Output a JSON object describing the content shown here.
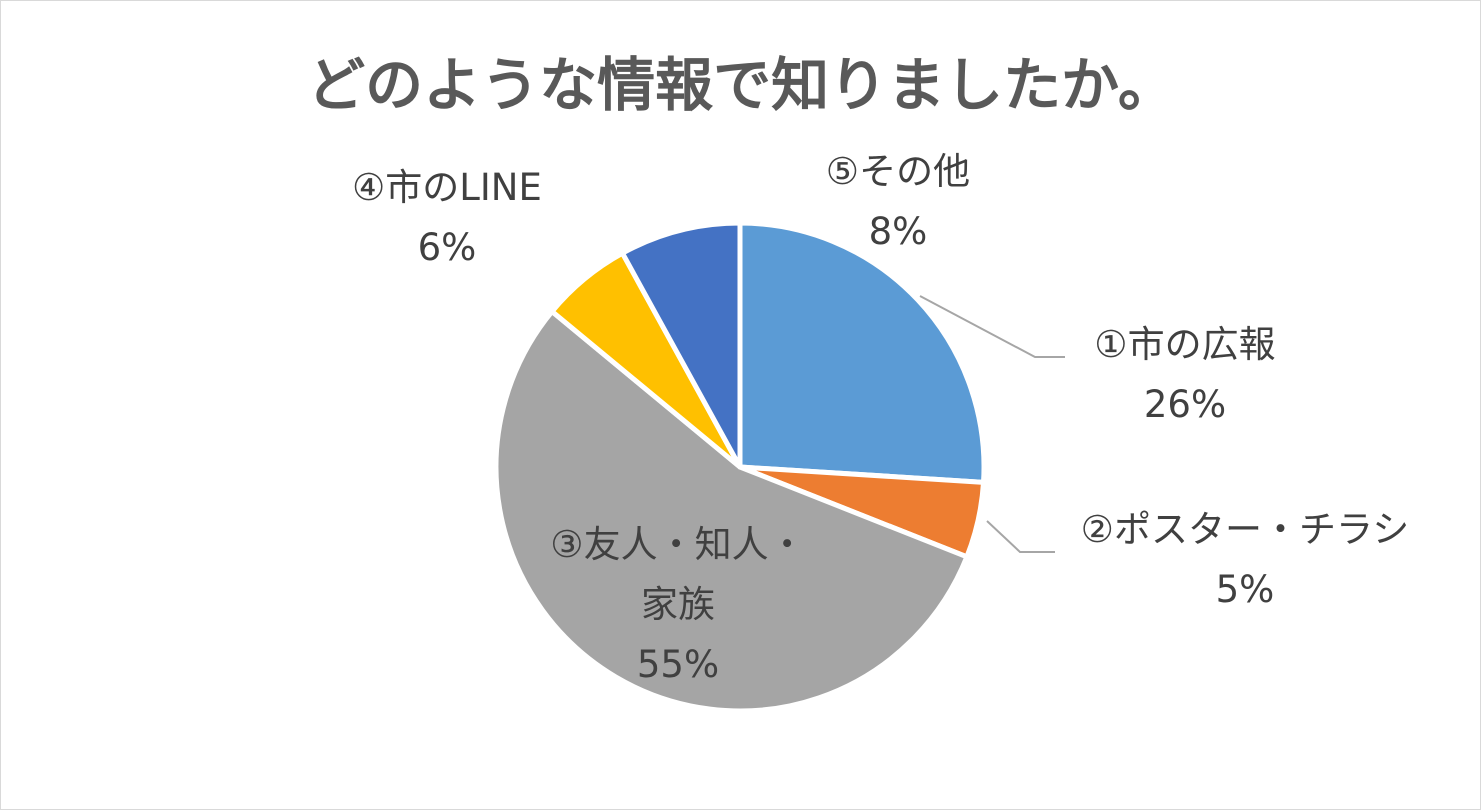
{
  "chart_data": {
    "type": "pie",
    "title": "どのような情報で知りましたか。",
    "slices": [
      {
        "label": "①市の広報",
        "label_lines": [
          "①市の広報"
        ],
        "value": 26,
        "percent_label": "26%",
        "color": "#5b9bd5"
      },
      {
        "label": "②ポスター・チラシ",
        "label_lines": [
          "②ポスター・チラシ"
        ],
        "value": 5,
        "percent_label": "5%",
        "color": "#ed7d31"
      },
      {
        "label": "③友人・知人・家族",
        "label_lines": [
          "③友人・知人・",
          "家族"
        ],
        "value": 55,
        "percent_label": "55%",
        "color": "#a5a5a5"
      },
      {
        "label": "④市のLINE",
        "label_lines": [
          "④市のLINE"
        ],
        "value": 6,
        "percent_label": "6%",
        "color": "#ffc000"
      },
      {
        "label": "⑤その他",
        "label_lines": [
          "⑤その他"
        ],
        "value": 8,
        "percent_label": "8%",
        "color": "#4472c4"
      }
    ],
    "start_angle": "12 o'clock",
    "direction": "clockwise",
    "legend": "none",
    "label_color": "#404040",
    "leader_line_color": "#a6a6a6",
    "separator_color": "#ffffff"
  }
}
